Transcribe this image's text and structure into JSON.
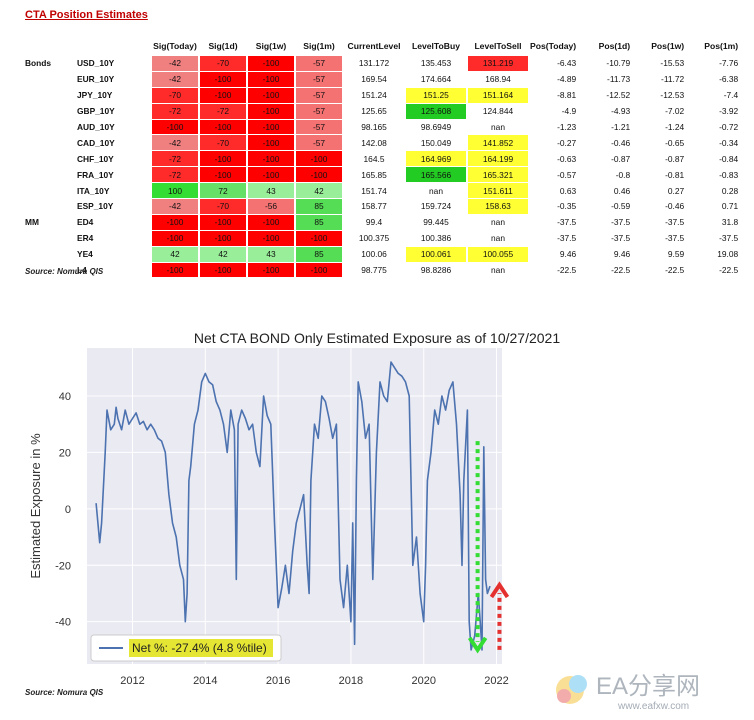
{
  "title": "CTA Position Estimates",
  "table": {
    "headers": [
      "Sig(Today)",
      "Sig(1d)",
      "Sig(1w)",
      "Sig(1m)",
      "CurrentLevel",
      "LevelToBuy",
      "LevelToSell",
      "Pos(Today)",
      "Pos(1d)",
      "Pos(1w)",
      "Pos(1m)"
    ],
    "rows": [
      {
        "group": "Bonds",
        "instrument": "USD_10Y",
        "sig": [
          "-42",
          "-70",
          "-100",
          "-57"
        ],
        "sig_colors": [
          "#f08080",
          "#ff2a2a",
          "#ff0000",
          "#f57272"
        ],
        "current": "131.172",
        "buy": "135.453",
        "sell": "131.219",
        "buy_color": "",
        "sell_color": "#ff2a2a",
        "pos": [
          "-6.43",
          "-10.79",
          "-15.53",
          "-7.76"
        ]
      },
      {
        "group": "",
        "instrument": "EUR_10Y",
        "sig": [
          "-42",
          "-100",
          "-100",
          "-57"
        ],
        "sig_colors": [
          "#f08080",
          "#ff0000",
          "#ff0000",
          "#f57272"
        ],
        "current": "169.54",
        "buy": "174.664",
        "sell": "168.94",
        "buy_color": "",
        "sell_color": "",
        "pos": [
          "-4.89",
          "-11.73",
          "-11.72",
          "-6.38"
        ]
      },
      {
        "group": "",
        "instrument": "JPY_10Y",
        "sig": [
          "-70",
          "-100",
          "-100",
          "-57"
        ],
        "sig_colors": [
          "#ff2a2a",
          "#ff0000",
          "#ff0000",
          "#f57272"
        ],
        "current": "151.24",
        "buy": "151.25",
        "sell": "151.164",
        "buy_color": "#ffff33",
        "sell_color": "#ffff33",
        "pos": [
          "-8.81",
          "-12.52",
          "-12.53",
          "-7.4"
        ]
      },
      {
        "group": "",
        "instrument": "GBP_10Y",
        "sig": [
          "-72",
          "-72",
          "-100",
          "-57"
        ],
        "sig_colors": [
          "#ff2a2a",
          "#ff2a2a",
          "#ff0000",
          "#f57272"
        ],
        "current": "125.65",
        "buy": "125.608",
        "sell": "124.844",
        "buy_color": "#22cc22",
        "sell_color": "",
        "pos": [
          "-4.9",
          "-4.93",
          "-7.02",
          "-3.92"
        ]
      },
      {
        "group": "",
        "instrument": "AUD_10Y",
        "sig": [
          "-100",
          "-100",
          "-100",
          "-57"
        ],
        "sig_colors": [
          "#ff0000",
          "#ff0000",
          "#ff0000",
          "#f57272"
        ],
        "current": "98.165",
        "buy": "98.6949",
        "sell": "nan",
        "buy_color": "",
        "sell_color": "",
        "pos": [
          "-1.23",
          "-1.21",
          "-1.24",
          "-0.72"
        ]
      },
      {
        "group": "",
        "instrument": "CAD_10Y",
        "sig": [
          "-42",
          "-70",
          "-100",
          "-57"
        ],
        "sig_colors": [
          "#f08080",
          "#ff2a2a",
          "#ff0000",
          "#f57272"
        ],
        "current": "142.08",
        "buy": "150.049",
        "sell": "141.852",
        "buy_color": "",
        "sell_color": "#ffff33",
        "pos": [
          "-0.27",
          "-0.46",
          "-0.65",
          "-0.34"
        ]
      },
      {
        "group": "",
        "instrument": "CHF_10Y",
        "sig": [
          "-72",
          "-100",
          "-100",
          "-100"
        ],
        "sig_colors": [
          "#ff2a2a",
          "#ff0000",
          "#ff0000",
          "#ff0000"
        ],
        "current": "164.5",
        "buy": "164.969",
        "sell": "164.199",
        "buy_color": "#ffff33",
        "sell_color": "#ffff33",
        "pos": [
          "-0.63",
          "-0.87",
          "-0.87",
          "-0.84"
        ]
      },
      {
        "group": "",
        "instrument": "FRA_10Y",
        "sig": [
          "-72",
          "-100",
          "-100",
          "-100"
        ],
        "sig_colors": [
          "#ff2a2a",
          "#ff0000",
          "#ff0000",
          "#ff0000"
        ],
        "current": "165.85",
        "buy": "165.566",
        "sell": "165.321",
        "buy_color": "#22cc22",
        "sell_color": "#ffff33",
        "pos": [
          "-0.57",
          "-0.8",
          "-0.81",
          "-0.83"
        ]
      },
      {
        "group": "",
        "instrument": "ITA_10Y",
        "sig": [
          "100",
          "72",
          "43",
          "42"
        ],
        "sig_colors": [
          "#33dd33",
          "#66e066",
          "#99ee99",
          "#99ee99"
        ],
        "current": "151.74",
        "buy": "nan",
        "sell": "151.611",
        "buy_color": "",
        "sell_color": "#ffff33",
        "pos": [
          "0.63",
          "0.46",
          "0.27",
          "0.28"
        ]
      },
      {
        "group": "",
        "instrument": "ESP_10Y",
        "sig": [
          "-42",
          "-70",
          "-56",
          "85"
        ],
        "sig_colors": [
          "#f08080",
          "#ff2a2a",
          "#f57272",
          "#55dd55"
        ],
        "current": "158.77",
        "buy": "159.724",
        "sell": "158.63",
        "buy_color": "",
        "sell_color": "#ffff33",
        "pos": [
          "-0.35",
          "-0.59",
          "-0.46",
          "0.71"
        ]
      },
      {
        "group": "MM",
        "instrument": "ED4",
        "sig": [
          "-100",
          "-100",
          "-100",
          "85"
        ],
        "sig_colors": [
          "#ff0000",
          "#ff0000",
          "#ff0000",
          "#55dd55"
        ],
        "current": "99.4",
        "buy": "99.445",
        "sell": "nan",
        "buy_color": "",
        "sell_color": "",
        "pos": [
          "-37.5",
          "-37.5",
          "-37.5",
          "31.8"
        ]
      },
      {
        "group": "",
        "instrument": "ER4",
        "sig": [
          "-100",
          "-100",
          "-100",
          "-100"
        ],
        "sig_colors": [
          "#ff0000",
          "#ff0000",
          "#ff0000",
          "#ff0000"
        ],
        "current": "100.375",
        "buy": "100.386",
        "sell": "nan",
        "buy_color": "",
        "sell_color": "",
        "pos": [
          "-37.5",
          "-37.5",
          "-37.5",
          "-37.5"
        ]
      },
      {
        "group": "",
        "instrument": "YE4",
        "sig": [
          "42",
          "42",
          "43",
          "85"
        ],
        "sig_colors": [
          "#99ee99",
          "#99ee99",
          "#99ee99",
          "#55dd55"
        ],
        "current": "100.06",
        "buy": "100.061",
        "sell": "100.055",
        "buy_color": "#ffff33",
        "sell_color": "#ffff33",
        "pos": [
          "9.46",
          "9.46",
          "9.59",
          "19.08"
        ]
      },
      {
        "group": "",
        "instrument": "L4",
        "sig": [
          "-100",
          "-100",
          "-100",
          "-100"
        ],
        "sig_colors": [
          "#ff0000",
          "#ff0000",
          "#ff0000",
          "#ff0000"
        ],
        "current": "98.775",
        "buy": "98.8286",
        "sell": "nan",
        "buy_color": "",
        "sell_color": "",
        "pos": [
          "-22.5",
          "-22.5",
          "-22.5",
          "-22.5"
        ]
      }
    ]
  },
  "source_label": "Source: Nomura QIS",
  "source_label_2": "Source: Nomura QIS",
  "chart_data": {
    "type": "line",
    "title": "Net CTA BOND Only Estimated Exposure as of 10/27/2021",
    "xlabel": "",
    "ylabel": "Estimated Exposure in %",
    "xlim": [
      2010.75,
      2022.15
    ],
    "ylim": [
      -55,
      57
    ],
    "xticks": [
      2012,
      2014,
      2016,
      2018,
      2020,
      2022
    ],
    "yticks": [
      -40,
      -20,
      0,
      20,
      40
    ],
    "grid": true,
    "background": "#eaeaf2",
    "line_color": "#4c72b0",
    "legend": {
      "label": "Net %:  -27.4% (4.8 %tile)",
      "placement": "bottom-left",
      "highlight": "#e5e533"
    },
    "series": [
      {
        "name": "Net %:  -27.4% (4.8 %tile)",
        "x": [
          2011.0,
          2011.1,
          2011.15,
          2011.25,
          2011.3,
          2011.4,
          2011.5,
          2011.55,
          2011.6,
          2011.7,
          2011.8,
          2011.9,
          2012.0,
          2012.1,
          2012.2,
          2012.3,
          2012.4,
          2012.5,
          2012.6,
          2012.7,
          2012.8,
          2012.9,
          2013.0,
          2013.1,
          2013.2,
          2013.3,
          2013.4,
          2013.45,
          2013.5,
          2013.55,
          2013.6,
          2013.7,
          2013.8,
          2013.9,
          2014.0,
          2014.1,
          2014.2,
          2014.3,
          2014.4,
          2014.5,
          2014.6,
          2014.7,
          2014.8,
          2014.85,
          2014.9,
          2015.0,
          2015.1,
          2015.2,
          2015.3,
          2015.4,
          2015.5,
          2015.6,
          2015.7,
          2015.8,
          2015.9,
          2016.0,
          2016.1,
          2016.2,
          2016.3,
          2016.4,
          2016.5,
          2016.6,
          2016.7,
          2016.8,
          2016.85,
          2016.9,
          2017.0,
          2017.1,
          2017.2,
          2017.3,
          2017.4,
          2017.5,
          2017.6,
          2017.7,
          2017.8,
          2017.9,
          2018.0,
          2018.05,
          2018.1,
          2018.15,
          2018.2,
          2018.3,
          2018.4,
          2018.5,
          2018.6,
          2018.7,
          2018.8,
          2018.9,
          2019.0,
          2019.1,
          2019.2,
          2019.3,
          2019.4,
          2019.5,
          2019.6,
          2019.7,
          2019.8,
          2019.9,
          2020.0,
          2020.05,
          2020.1,
          2020.2,
          2020.3,
          2020.4,
          2020.5,
          2020.6,
          2020.7,
          2020.8,
          2020.9,
          2021.0,
          2021.05,
          2021.1,
          2021.2,
          2021.25,
          2021.3,
          2021.4,
          2021.5,
          2021.55,
          2021.6,
          2021.65,
          2021.7,
          2021.75,
          2021.82
        ],
        "values": [
          2,
          -12,
          -5,
          20,
          35,
          28,
          30,
          36,
          32,
          28,
          35,
          30,
          32,
          34,
          30,
          31,
          28,
          30,
          28,
          25,
          24,
          20,
          5,
          -5,
          -10,
          -20,
          -25,
          -40,
          -30,
          10,
          15,
          30,
          35,
          45,
          48,
          45,
          44,
          38,
          35,
          30,
          20,
          35,
          28,
          -25,
          30,
          35,
          32,
          28,
          30,
          20,
          15,
          40,
          33,
          30,
          -5,
          -35,
          -28,
          -20,
          -30,
          -15,
          -5,
          0,
          5,
          -20,
          -30,
          10,
          30,
          25,
          40,
          38,
          32,
          25,
          30,
          -25,
          -35,
          -20,
          -40,
          -5,
          -48,
          10,
          45,
          38,
          25,
          30,
          -25,
          20,
          45,
          40,
          38,
          52,
          50,
          48,
          47,
          45,
          40,
          -20,
          -10,
          -30,
          -40,
          -20,
          10,
          20,
          35,
          30,
          40,
          35,
          42,
          45,
          30,
          5,
          -20,
          10,
          35,
          -40,
          -50,
          -45,
          -30,
          -40,
          -50,
          22,
          -25,
          -30,
          -27.4
        ]
      }
    ],
    "annotations": [
      {
        "type": "arrow",
        "direction": "down",
        "color": "#33dd33",
        "style": "dotted",
        "x": 2021.48,
        "from": 24,
        "to": -50
      },
      {
        "type": "arrow",
        "direction": "up",
        "color": "#e53030",
        "style": "dotted",
        "x": 2022.08,
        "from": -50,
        "to": -27
      }
    ]
  },
  "watermark": {
    "brand": "EA分享网",
    "url": "www.eafxw.com"
  }
}
